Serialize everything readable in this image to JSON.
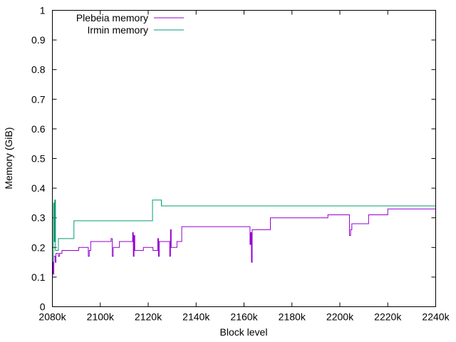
{
  "chart_data": {
    "type": "line",
    "title": "",
    "xlabel": "Block level",
    "ylabel": "Memory (GiB)",
    "xlim": [
      2080000,
      2240000
    ],
    "ylim": [
      0,
      1
    ],
    "xticks": [
      2080000,
      2100000,
      2120000,
      2140000,
      2160000,
      2180000,
      2200000,
      2220000,
      2240000
    ],
    "xtick_labels": [
      "2080k",
      "2100k",
      "2120k",
      "2140k",
      "2160k",
      "2180k",
      "2200k",
      "2220k",
      "2240k"
    ],
    "yticks": [
      0,
      0.1,
      0.2,
      0.3,
      0.4,
      0.5,
      0.6,
      0.7,
      0.8,
      0.9,
      1
    ],
    "ytick_labels": [
      "0",
      "0.1",
      "0.2",
      "0.3",
      "0.4",
      "0.5",
      "0.6",
      "0.7",
      "0.8",
      "0.9",
      "1"
    ],
    "grid": false,
    "legend": "top-left",
    "series": [
      {
        "name": "Plebeia memory",
        "color": "#9400d3",
        "points": [
          [
            2080000,
            0.15
          ],
          [
            2080300,
            0.15
          ],
          [
            2080300,
            0.11
          ],
          [
            2080600,
            0.11
          ],
          [
            2080600,
            0.17
          ],
          [
            2081200,
            0.17
          ],
          [
            2081200,
            0.15
          ],
          [
            2081500,
            0.15
          ],
          [
            2081500,
            0.18
          ],
          [
            2082500,
            0.18
          ],
          [
            2082500,
            0.17
          ],
          [
            2083000,
            0.17
          ],
          [
            2083000,
            0.18
          ],
          [
            2084000,
            0.18
          ],
          [
            2084000,
            0.19
          ],
          [
            2091000,
            0.19
          ],
          [
            2091000,
            0.2
          ],
          [
            2095000,
            0.2
          ],
          [
            2095000,
            0.17
          ],
          [
            2095400,
            0.17
          ],
          [
            2095400,
            0.19
          ],
          [
            2096000,
            0.19
          ],
          [
            2096000,
            0.22
          ],
          [
            2104500,
            0.22
          ],
          [
            2104500,
            0.23
          ],
          [
            2105000,
            0.23
          ],
          [
            2105000,
            0.17
          ],
          [
            2105400,
            0.17
          ],
          [
            2105400,
            0.2
          ],
          [
            2108000,
            0.2
          ],
          [
            2108000,
            0.22
          ],
          [
            2113500,
            0.22
          ],
          [
            2113500,
            0.25
          ],
          [
            2113800,
            0.25
          ],
          [
            2113800,
            0.17
          ],
          [
            2114100,
            0.17
          ],
          [
            2114100,
            0.24
          ],
          [
            2114400,
            0.24
          ],
          [
            2114400,
            0.19
          ],
          [
            2118000,
            0.19
          ],
          [
            2118000,
            0.2
          ],
          [
            2122000,
            0.2
          ],
          [
            2122000,
            0.19
          ],
          [
            2124000,
            0.19
          ],
          [
            2124000,
            0.23
          ],
          [
            2124300,
            0.23
          ],
          [
            2124300,
            0.17
          ],
          [
            2124600,
            0.17
          ],
          [
            2124600,
            0.22
          ],
          [
            2129000,
            0.22
          ],
          [
            2129000,
            0.17
          ],
          [
            2129300,
            0.17
          ],
          [
            2129300,
            0.26
          ],
          [
            2129600,
            0.26
          ],
          [
            2129600,
            0.2
          ],
          [
            2132000,
            0.2
          ],
          [
            2132000,
            0.22
          ],
          [
            2134000,
            0.22
          ],
          [
            2134000,
            0.27
          ],
          [
            2162500,
            0.27
          ],
          [
            2162500,
            0.21
          ],
          [
            2162800,
            0.21
          ],
          [
            2162800,
            0.25
          ],
          [
            2163100,
            0.25
          ],
          [
            2163100,
            0.15
          ],
          [
            2163400,
            0.15
          ],
          [
            2163400,
            0.26
          ],
          [
            2171000,
            0.26
          ],
          [
            2171000,
            0.3
          ],
          [
            2195000,
            0.3
          ],
          [
            2195000,
            0.31
          ],
          [
            2204000,
            0.31
          ],
          [
            2204000,
            0.24
          ],
          [
            2204500,
            0.24
          ],
          [
            2204500,
            0.26
          ],
          [
            2205000,
            0.26
          ],
          [
            2205000,
            0.28
          ],
          [
            2212000,
            0.28
          ],
          [
            2212000,
            0.31
          ],
          [
            2220000,
            0.31
          ],
          [
            2220000,
            0.33
          ],
          [
            2240000,
            0.33
          ]
        ]
      },
      {
        "name": "Irmin memory",
        "color": "#009e73",
        "points": [
          [
            2080500,
            0.15
          ],
          [
            2080500,
            0.35
          ],
          [
            2080800,
            0.35
          ],
          [
            2080800,
            0.22
          ],
          [
            2081000,
            0.22
          ],
          [
            2081000,
            0.36
          ],
          [
            2081300,
            0.36
          ],
          [
            2081300,
            0.19
          ],
          [
            2082500,
            0.19
          ],
          [
            2082500,
            0.23
          ],
          [
            2089000,
            0.23
          ],
          [
            2089000,
            0.29
          ],
          [
            2121800,
            0.29
          ],
          [
            2121800,
            0.36
          ],
          [
            2125500,
            0.36
          ],
          [
            2125500,
            0.34
          ],
          [
            2240000,
            0.34
          ]
        ]
      }
    ]
  }
}
